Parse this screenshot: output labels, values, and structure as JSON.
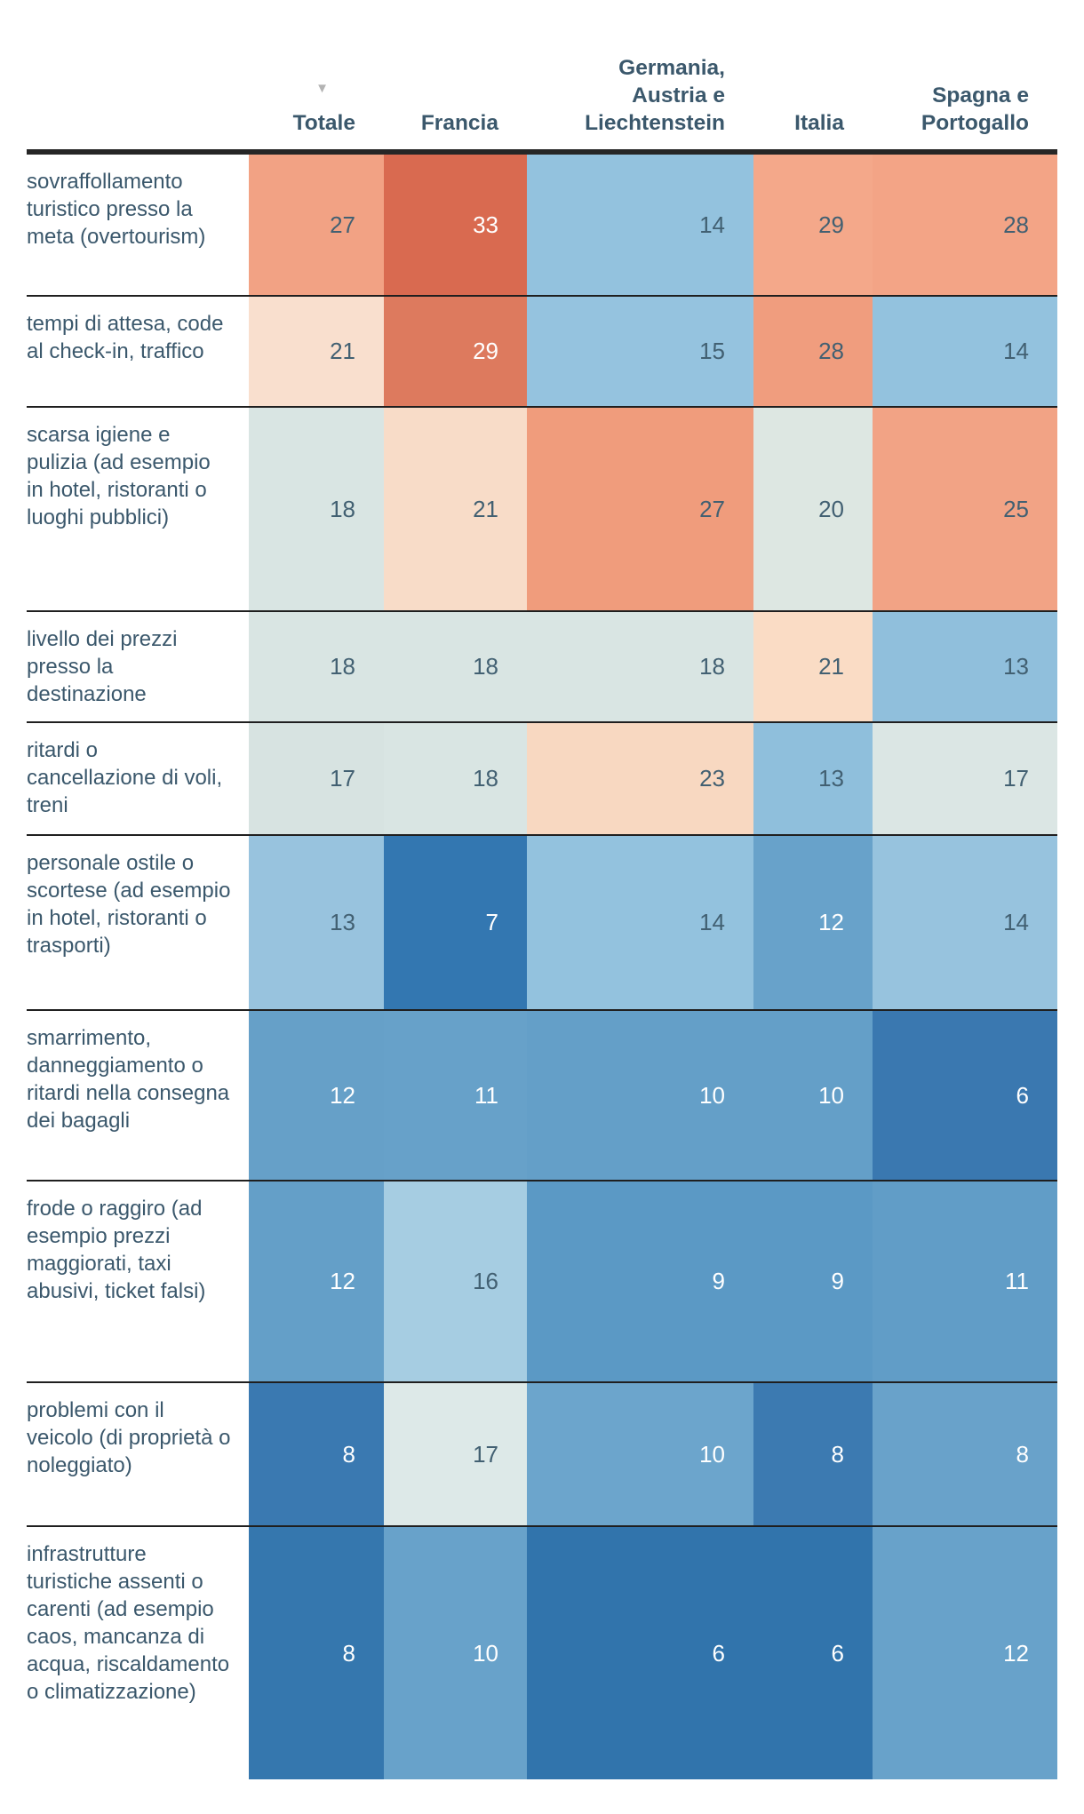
{
  "table": {
    "sort_icon": "▼",
    "corner_label": "",
    "columns": [
      {
        "id": "totale",
        "label": "Totale",
        "sorted": true
      },
      {
        "id": "francia",
        "label": "Francia",
        "sorted": false
      },
      {
        "id": "germania",
        "label": "Germania,\nAustria e\nLiechtenstein",
        "sorted": false
      },
      {
        "id": "italia",
        "label": "Italia",
        "sorted": false
      },
      {
        "id": "spagna",
        "label": "Spagna e\nPortogallo",
        "sorted": false
      }
    ],
    "rows": [
      {
        "label": "sovraffollamento turistico presso la meta (overtourism)",
        "cells": [
          {
            "value": 27,
            "bg": "#f2a284",
            "tone": "dark"
          },
          {
            "value": 33,
            "bg": "#d96a50",
            "tone": "white"
          },
          {
            "value": 14,
            "bg": "#93c2de",
            "tone": "dark"
          },
          {
            "value": 29,
            "bg": "#f4a88a",
            "tone": "dark"
          },
          {
            "value": 28,
            "bg": "#f3a486",
            "tone": "dark"
          }
        ]
      },
      {
        "label": "tempi di attesa, code al check-in, traffico",
        "cells": [
          {
            "value": 21,
            "bg": "#f9dfce",
            "tone": "dark"
          },
          {
            "value": 29,
            "bg": "#dd7a5e",
            "tone": "white"
          },
          {
            "value": 15,
            "bg": "#95c3df",
            "tone": "dark"
          },
          {
            "value": 28,
            "bg": "#f09d7e",
            "tone": "dark"
          },
          {
            "value": 14,
            "bg": "#93c2de",
            "tone": "dark"
          }
        ]
      },
      {
        "label": "scarsa igiene e pulizia (ad esempio in hotel, ristoranti o luoghi pubblici)",
        "cells": [
          {
            "value": 18,
            "bg": "#d9e5e3",
            "tone": "dark"
          },
          {
            "value": 21,
            "bg": "#f8dcc8",
            "tone": "dark"
          },
          {
            "value": 27,
            "bg": "#f09c7c",
            "tone": "dark"
          },
          {
            "value": 20,
            "bg": "#dde7e2",
            "tone": "dark"
          },
          {
            "value": 25,
            "bg": "#f2a385",
            "tone": "dark"
          }
        ]
      },
      {
        "label": "livello dei prezzi presso la destinazione",
        "cells": [
          {
            "value": 18,
            "bg": "#d9e5e3",
            "tone": "dark"
          },
          {
            "value": 18,
            "bg": "#d9e5e3",
            "tone": "dark"
          },
          {
            "value": 18,
            "bg": "#d9e5e3",
            "tone": "dark"
          },
          {
            "value": 21,
            "bg": "#fadcc5",
            "tone": "dark"
          },
          {
            "value": 13,
            "bg": "#90bfdc",
            "tone": "dark"
          }
        ]
      },
      {
        "label": "ritardi o cancellazione di voli, treni",
        "cells": [
          {
            "value": 17,
            "bg": "#d7e3e1",
            "tone": "dark"
          },
          {
            "value": 18,
            "bg": "#d9e5e3",
            "tone": "dark"
          },
          {
            "value": 23,
            "bg": "#f8d8c1",
            "tone": "dark"
          },
          {
            "value": 13,
            "bg": "#8fbfdc",
            "tone": "dark"
          },
          {
            "value": 17,
            "bg": "#dbe6e4",
            "tone": "dark"
          }
        ]
      },
      {
        "label": "personale ostile o scortese (ad esempio in hotel, ristoranti o trasporti)",
        "cells": [
          {
            "value": 13,
            "bg": "#98c3de",
            "tone": "dark"
          },
          {
            "value": 7,
            "bg": "#3377b1",
            "tone": "white"
          },
          {
            "value": 14,
            "bg": "#93c2de",
            "tone": "dark"
          },
          {
            "value": 12,
            "bg": "#68a2ca",
            "tone": "white"
          },
          {
            "value": 14,
            "bg": "#97c3de",
            "tone": "dark"
          }
        ]
      },
      {
        "label": "smarrimento, danneggiamento o ritardi nella consegna dei bagagli",
        "cells": [
          {
            "value": 12,
            "bg": "#66a0c8",
            "tone": "white"
          },
          {
            "value": 11,
            "bg": "#67a1c9",
            "tone": "white"
          },
          {
            "value": 10,
            "bg": "#649fc8",
            "tone": "white"
          },
          {
            "value": 10,
            "bg": "#649fc8",
            "tone": "white"
          },
          {
            "value": 6,
            "bg": "#3a78b0",
            "tone": "white"
          }
        ]
      },
      {
        "label": "frode o raggiro (ad esempio prezzi maggiorati, taxi abusivi, ticket falsi)",
        "cells": [
          {
            "value": 12,
            "bg": "#649fc8",
            "tone": "white"
          },
          {
            "value": 16,
            "bg": "#a6cde2",
            "tone": "dark"
          },
          {
            "value": 9,
            "bg": "#5b99c5",
            "tone": "white"
          },
          {
            "value": 9,
            "bg": "#5b99c5",
            "tone": "white"
          },
          {
            "value": 11,
            "bg": "#619dc7",
            "tone": "white"
          }
        ]
      },
      {
        "label": "problemi con il veicolo (di proprietà o noleggiato)",
        "cells": [
          {
            "value": 8,
            "bg": "#3a79b1",
            "tone": "white"
          },
          {
            "value": 17,
            "bg": "#dde9e8",
            "tone": "dark"
          },
          {
            "value": 10,
            "bg": "#6ca5cc",
            "tone": "white"
          },
          {
            "value": 8,
            "bg": "#3c7ab1",
            "tone": "white"
          },
          {
            "value": 8,
            "bg": "#69a2ca",
            "tone": "white"
          }
        ]
      },
      {
        "label": "infrastrutture turistiche assenti o carenti (ad esempio caos, mancanza di acqua, riscaldamento o climatizzazione)",
        "cells": [
          {
            "value": 8,
            "bg": "#3577ae",
            "tone": "white"
          },
          {
            "value": 10,
            "bg": "#68a2ca",
            "tone": "white"
          },
          {
            "value": 6,
            "bg": "#3174ac",
            "tone": "white"
          },
          {
            "value": 6,
            "bg": "#3174ac",
            "tone": "white"
          },
          {
            "value": 12,
            "bg": "#68a2ca",
            "tone": "white"
          }
        ]
      }
    ]
  },
  "chart_data": {
    "type": "heatmap",
    "title": "",
    "columns": [
      "Totale",
      "Francia",
      "Germania, Austria e Liechtenstein",
      "Italia",
      "Spagna e Portogallo"
    ],
    "rows": [
      "sovraffollamento turistico presso la meta (overtourism)",
      "tempi di attesa, code al check-in, traffico",
      "scarsa igiene e pulizia (ad esempio in hotel, ristoranti o luoghi pubblici)",
      "livello dei prezzi presso la destinazione",
      "ritardi o cancellazione di voli, treni",
      "personale ostile o scortese (ad esempio in hotel, ristoranti o trasporti)",
      "smarrimento, danneggiamento o ritardi nella consegna dei bagagli",
      "frode o raggiro (ad esempio prezzi maggiorati, taxi abusivi, ticket falsi)",
      "problemi con il veicolo (di proprietà o noleggiato)",
      "infrastrutture turistiche assenti o carenti (ad esempio caos, mancanza di acqua, riscaldamento o climatizzazione)"
    ],
    "values": [
      [
        27,
        33,
        14,
        29,
        28
      ],
      [
        21,
        29,
        15,
        28,
        14
      ],
      [
        18,
        21,
        27,
        20,
        25
      ],
      [
        18,
        18,
        18,
        21,
        13
      ],
      [
        17,
        18,
        23,
        13,
        17
      ],
      [
        13,
        7,
        14,
        12,
        14
      ],
      [
        12,
        11,
        10,
        10,
        6
      ],
      [
        12,
        16,
        9,
        9,
        11
      ],
      [
        8,
        17,
        10,
        8,
        8
      ],
      [
        8,
        10,
        6,
        6,
        12
      ]
    ],
    "value_range": [
      6,
      33
    ],
    "sorted_by": "Totale",
    "sort_order": "descending",
    "palette": {
      "type": "diverging",
      "low_color": "#3174ac",
      "mid_color": "#dde7e4",
      "high_color": "#d96a50",
      "midpoint": 18
    },
    "legend_position": "none",
    "grid": "horizontal-rules"
  }
}
